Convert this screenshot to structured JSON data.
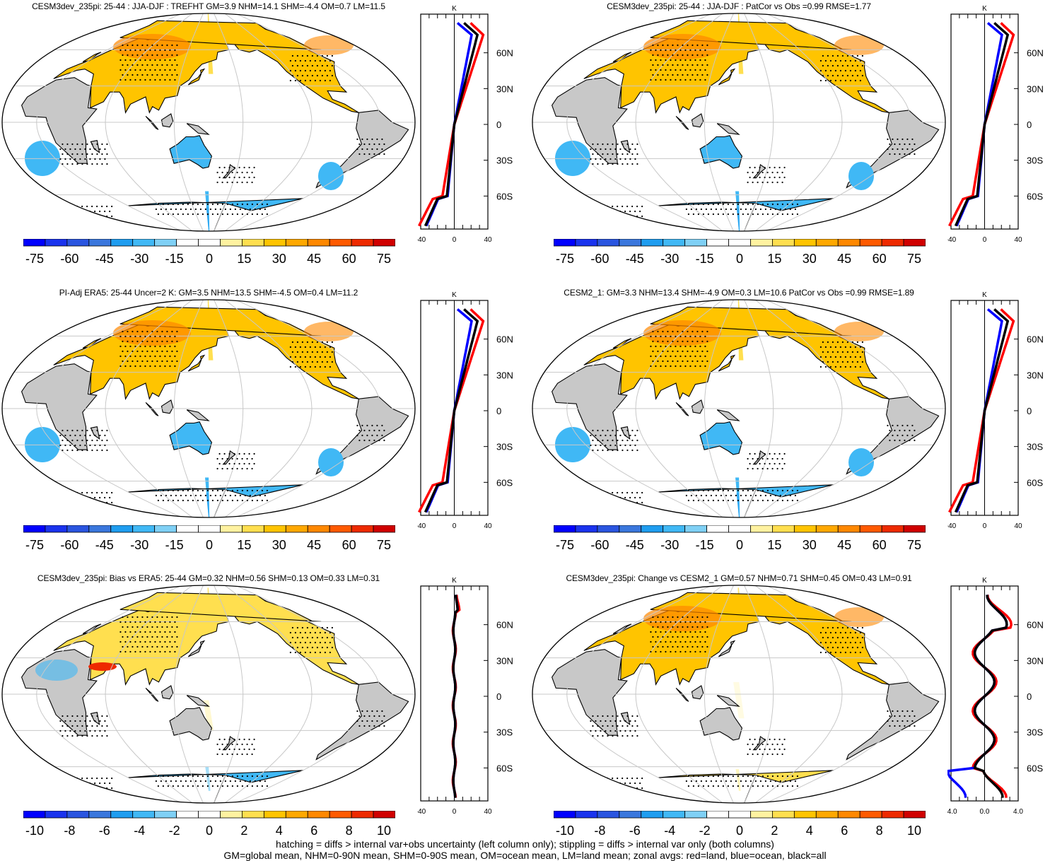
{
  "panels": [
    {
      "title": "CESM3dev_235pi: 25-44 : JJA-DJF : TREFHT GM=3.9 NHM=14.1 SHM=-4.4 OM=0.7 LM=11.5",
      "colorbar_labels": [
        "-75",
        "-60",
        "-45",
        "-30",
        "-15",
        "0",
        "15",
        "30",
        "45",
        "60",
        "75"
      ],
      "zonal_unit": "K",
      "zonal_x_labels": [
        "-40",
        "0",
        "40"
      ],
      "zonal_lat_labels": [
        "60N",
        "30N",
        "0",
        "30S",
        "60S"
      ]
    },
    {
      "title": "CESM3dev_235pi: 25-44 : JJA-DJF : PatCor vs Obs =0.99 RMSE=1.77",
      "colorbar_labels": [
        "-75",
        "-60",
        "-45",
        "-30",
        "-15",
        "0",
        "15",
        "30",
        "45",
        "60",
        "75"
      ],
      "zonal_unit": "K",
      "zonal_x_labels": [
        "-40",
        "0",
        "40"
      ],
      "zonal_lat_labels": [
        "60N",
        "30N",
        "0",
        "30S",
        "60S"
      ]
    },
    {
      "title": "PI-Adj ERA5: 25-44 Uncer=2 K: GM=3.5 NHM=13.5 SHM=-4.5 OM=0.4 LM=11.2",
      "colorbar_labels": [
        "-75",
        "-60",
        "-45",
        "-30",
        "-15",
        "0",
        "15",
        "30",
        "45",
        "60",
        "75"
      ],
      "zonal_unit": "K",
      "zonal_x_labels": [
        "-40",
        "0",
        "40"
      ],
      "zonal_lat_labels": [
        "60N",
        "30N",
        "0",
        "30S",
        "60S"
      ]
    },
    {
      "title": "CESM2_1: GM=3.3 NHM=13.4 SHM=-4.9 OM=0.3 LM=10.6 PatCor vs Obs =0.99 RMSE=1.89",
      "colorbar_labels": [
        "-75",
        "-60",
        "-45",
        "-30",
        "-15",
        "0",
        "15",
        "30",
        "45",
        "60",
        "75"
      ],
      "zonal_unit": "K",
      "zonal_x_labels": [
        "-40",
        "0",
        "40"
      ],
      "zonal_lat_labels": [
        "60N",
        "30N",
        "0",
        "30S",
        "60S"
      ]
    },
    {
      "title": "CESM3dev_235pi: Bias vs ERA5: 25-44 GM=0.32 NHM=0.56 SHM=0.13 OM=0.33 LM=0.31",
      "colorbar_labels": [
        "-10",
        "-8",
        "-6",
        "-4",
        "-2",
        "0",
        "2",
        "4",
        "6",
        "8",
        "10"
      ],
      "zonal_unit": "K",
      "zonal_x_labels": [
        "-40",
        "0",
        "40"
      ],
      "zonal_lat_labels": [
        "60N",
        "30N",
        "0",
        "30S",
        "60S"
      ]
    },
    {
      "title": "CESM3dev_235pi: Change vs CESM2_1 GM=0.57 NHM=0.71 SHM=0.45 OM=0.43 LM=0.91",
      "colorbar_labels": [
        "-10",
        "-8",
        "-6",
        "-4",
        "-2",
        "0",
        "2",
        "4",
        "6",
        "8",
        "10"
      ],
      "zonal_unit": "K",
      "zonal_x_labels": [
        "-4.0",
        "0.0",
        "4.0"
      ],
      "zonal_lat_labels": [
        "60N",
        "30N",
        "0",
        "30S",
        "60S"
      ]
    }
  ],
  "colors": {
    "land": "#c8c8c8",
    "zonal_land": "#ff0000",
    "zonal_ocean": "#0000ff",
    "zonal_all": "#000000",
    "palette": [
      "#0000ff",
      "#1a33ee",
      "#2a55e0",
      "#3a77dd",
      "#1f9df0",
      "#40b8f5",
      "#7fd0f5",
      "#ffffff",
      "#ffffff",
      "#fff2a0",
      "#ffdf4f",
      "#ffc400",
      "#ffa800",
      "#ff8800",
      "#ff5a00",
      "#ee2a00",
      "#d00000"
    ]
  },
  "footer": {
    "line1": "hatching = diffs > internal var+obs uncertainty (left column only); stippling = diffs > internal var only (both columns)",
    "line2": "GM=global mean, NHM=0-90N mean, SHM=0-90S mean, OM=ocean mean, LM=land mean; zonal avgs: red=land, blue=ocean, black=all"
  }
}
